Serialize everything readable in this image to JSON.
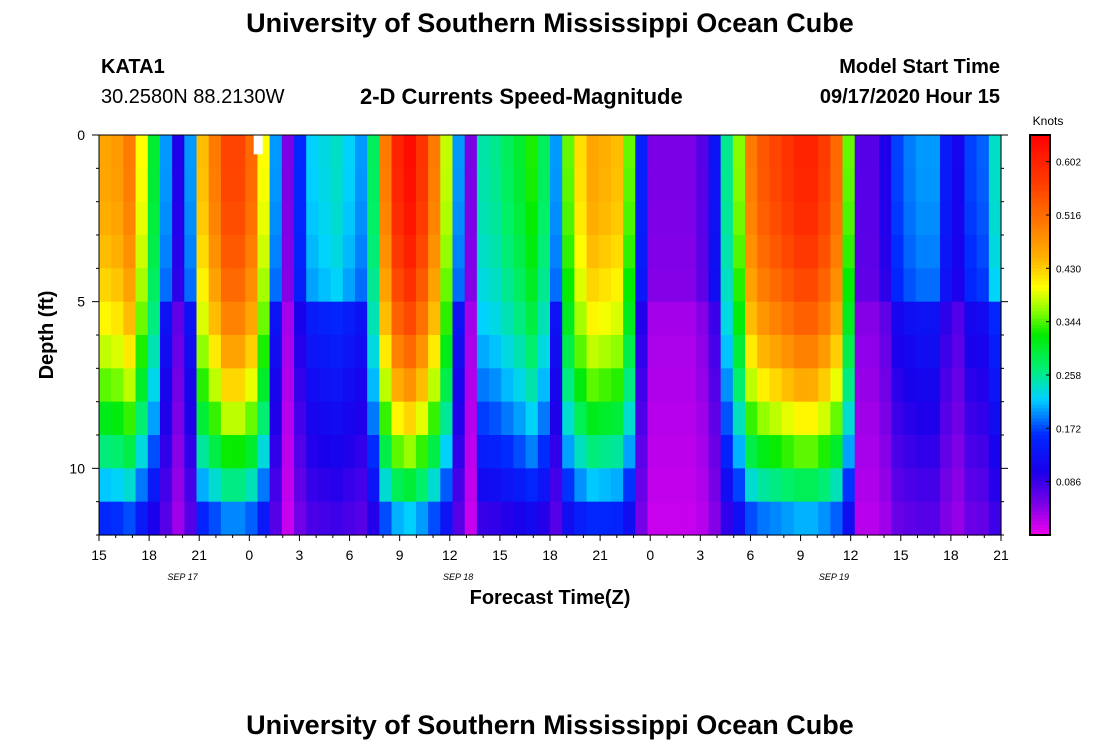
{
  "page": {
    "title_top": "University of Southern Mississippi Ocean Cube",
    "title_bottom": "University of Southern Mississippi Ocean Cube",
    "station": "KATA1",
    "coordinates": "30.2580N 88.2130W",
    "model_start_label": "Model Start Time",
    "model_start_value": "09/17/2020 Hour 15"
  },
  "chart_data": {
    "type": "heatmap",
    "title": "2-D Currents Speed-Magnitude",
    "xlabel": "Forecast Time(Z)",
    "ylabel": "Depth (ft)",
    "x_tick_labels": [
      "15",
      "18",
      "21",
      "0",
      "3",
      "6",
      "9",
      "12",
      "15",
      "18",
      "21",
      "0",
      "3",
      "6",
      "9",
      "12",
      "15",
      "18",
      "21"
    ],
    "date_labels": [
      {
        "label": "SEP 17",
        "hour": 5
      },
      {
        "label": "SEP 18",
        "hour": 21.5
      },
      {
        "label": "SEP 19",
        "hour": 44
      }
    ],
    "x_range_hours": [
      0,
      54
    ],
    "y_ticks": [
      0,
      5,
      10
    ],
    "y_minor_step": 1,
    "y_range_ft": [
      0,
      12
    ],
    "colorbar": {
      "label": "Knots",
      "range": [
        0.0,
        0.645
      ],
      "tick_values": [
        0.086,
        0.172,
        0.258,
        0.344,
        0.43,
        0.516,
        0.602
      ],
      "tick_labels": [
        "0.086",
        "0.172",
        "0.258",
        "0.344",
        "0.430",
        "0.516",
        "0.602"
      ]
    },
    "surface_profile_knots": [
      0.46,
      0.47,
      0.5,
      0.4,
      0.3,
      0.2,
      0.1,
      0.2,
      0.44,
      0.5,
      0.56,
      0.56,
      0.52,
      0.4,
      0.2,
      0.05,
      0.16,
      0.22,
      0.23,
      0.24,
      0.22,
      0.2,
      0.28,
      0.5,
      0.6,
      0.63,
      0.58,
      0.5,
      0.38,
      0.2,
      0.05,
      0.25,
      0.26,
      0.28,
      0.3,
      0.33,
      0.28,
      0.2,
      0.35,
      0.42,
      0.46,
      0.45,
      0.44,
      0.35,
      0.15,
      0.05,
      0.05,
      0.05,
      0.05,
      0.07,
      0.13,
      0.26,
      0.36,
      0.5,
      0.54,
      0.56,
      0.58,
      0.6,
      0.6,
      0.57,
      0.52,
      0.35,
      0.07,
      0.07,
      0.1,
      0.17,
      0.19,
      0.2,
      0.2,
      0.14,
      0.11,
      0.17,
      0.18,
      0.24
    ],
    "annotation": {
      "hour": 9.5,
      "depth_ft": 0.25,
      "note": "white marker"
    }
  }
}
